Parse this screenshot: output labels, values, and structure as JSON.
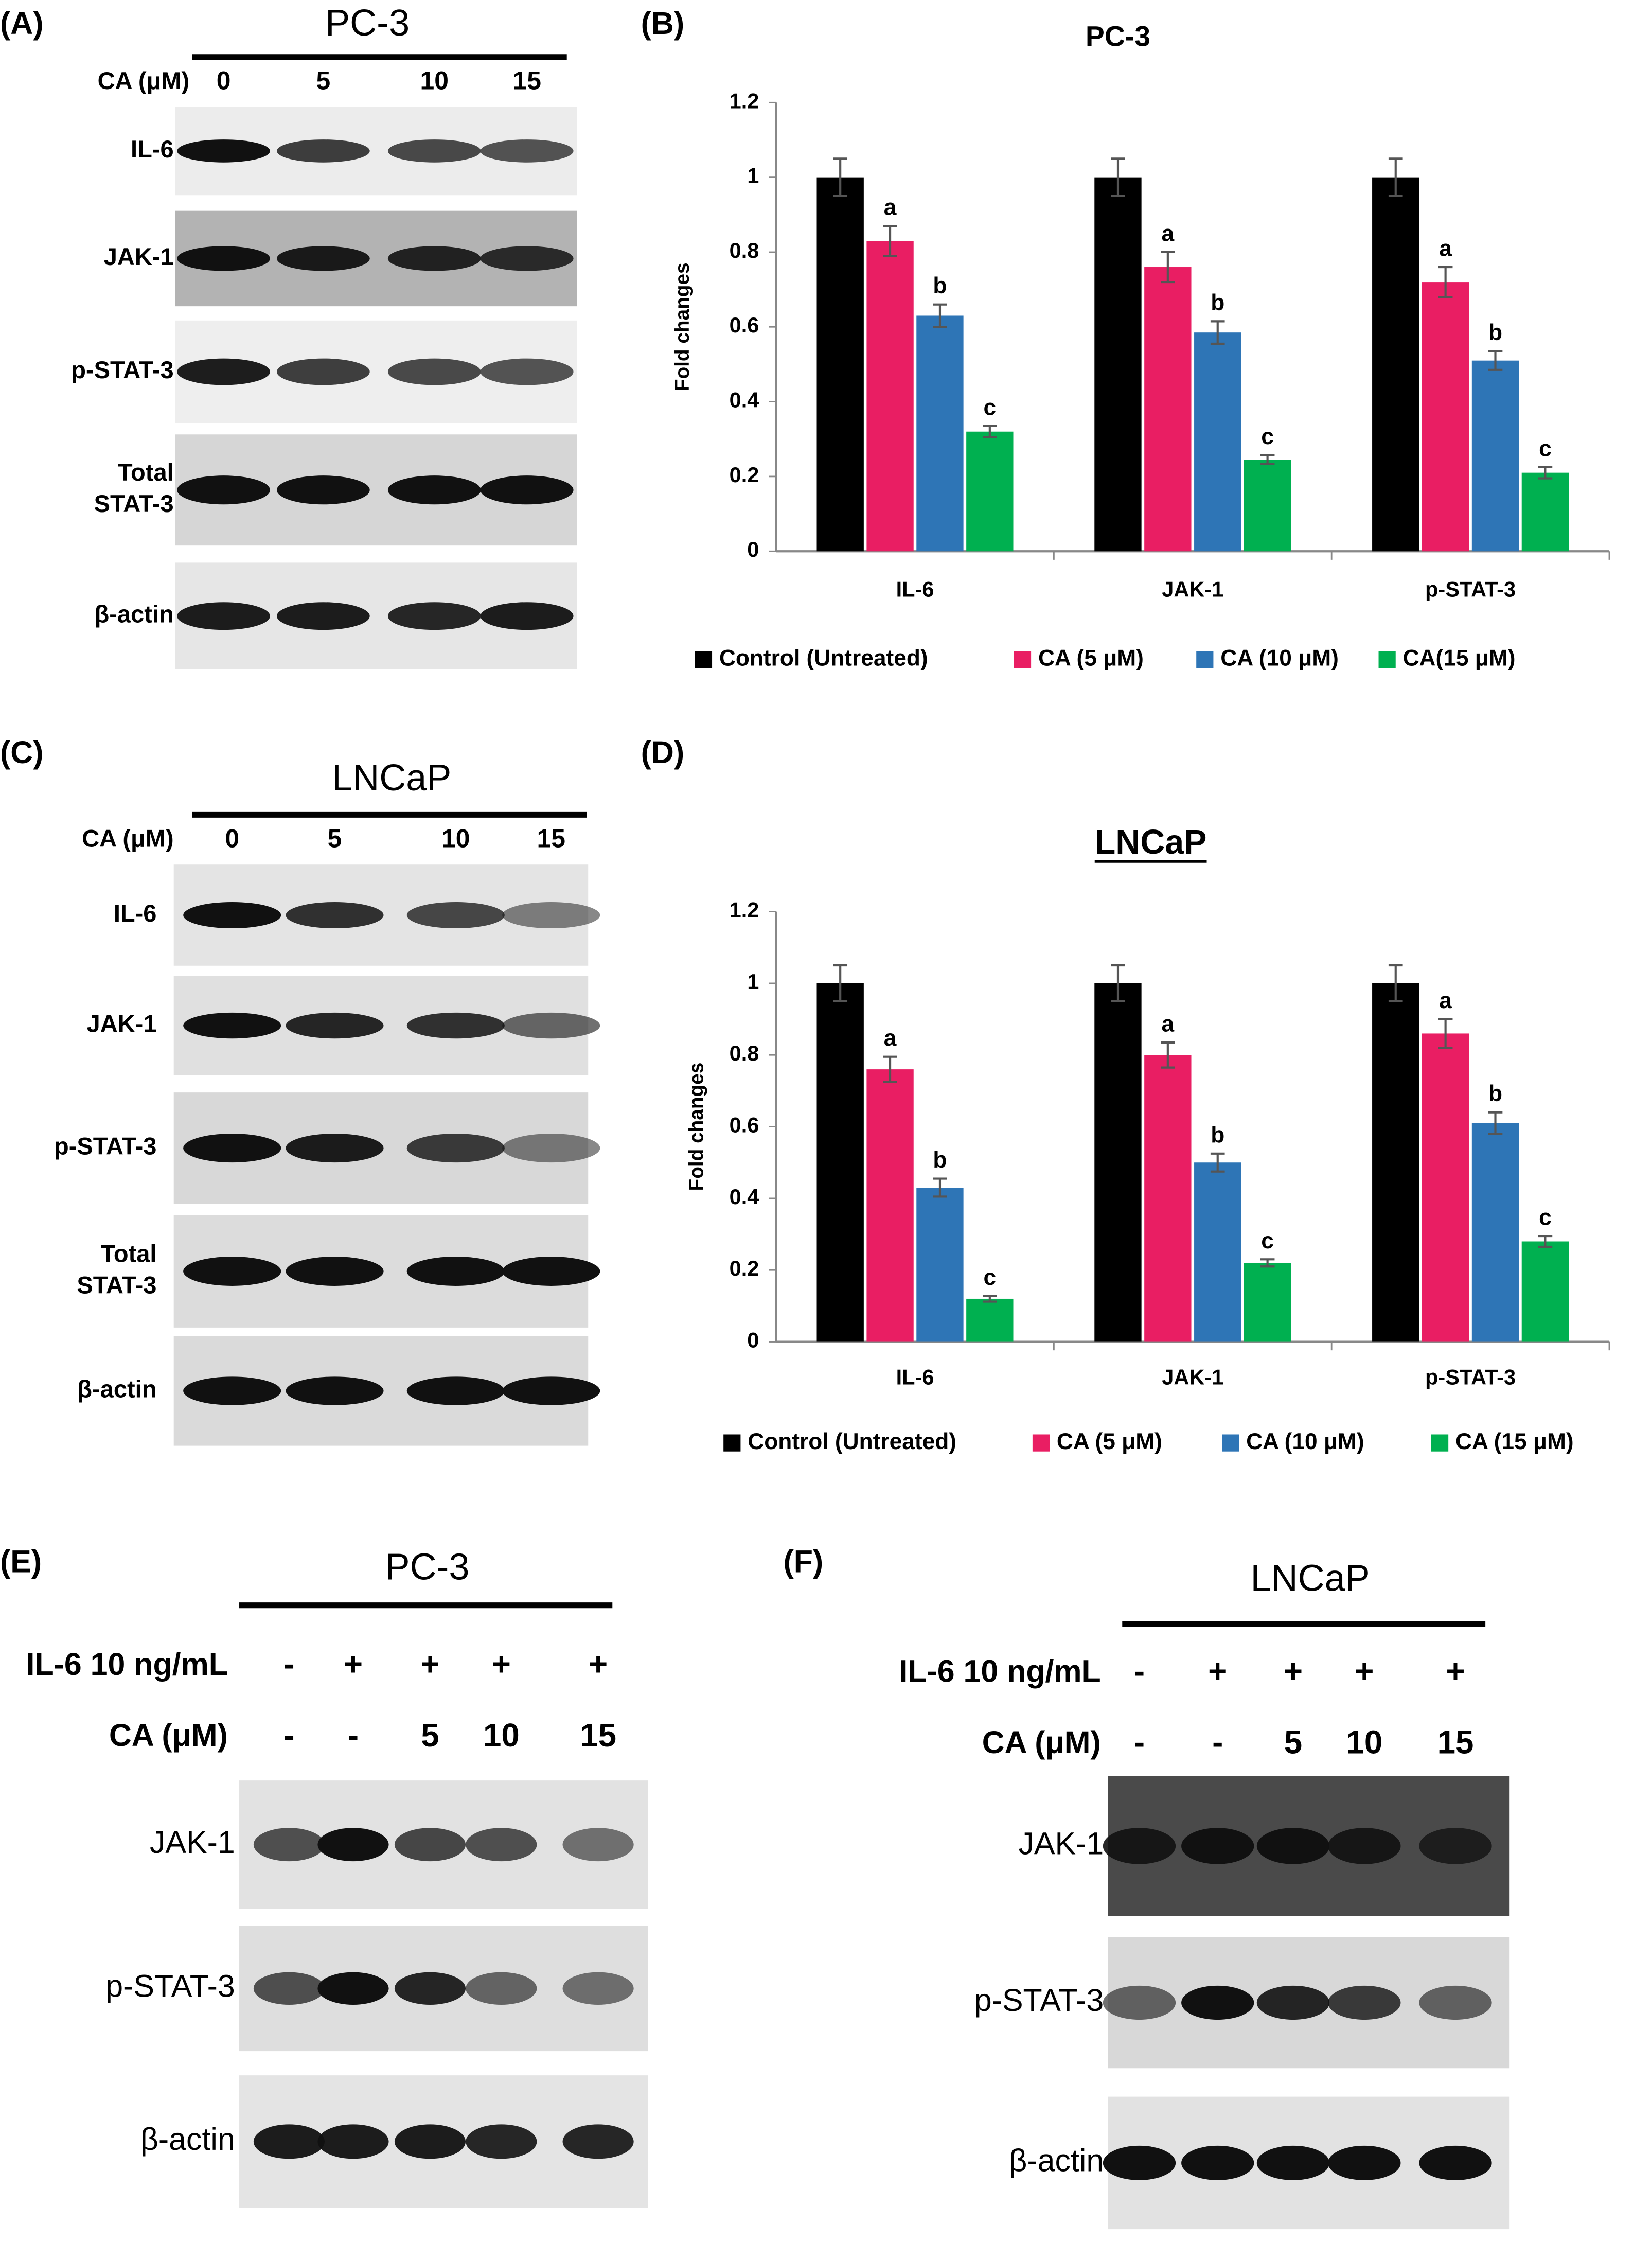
{
  "chart_data": [
    {
      "type": "bar",
      "panel": "(B)",
      "title": "PC-3",
      "title_underline": false,
      "y_label": "Fold changes",
      "categories": [
        "IL-6",
        "JAK-1",
        "p-STAT-3"
      ],
      "ylim": [
        0,
        1.2
      ],
      "yticks": [
        0,
        0.2,
        0.4,
        0.6,
        0.8,
        1,
        1.2
      ],
      "grid": false,
      "series": [
        {
          "name": "Control (Untreated)",
          "color": "#000000",
          "values": [
            1,
            1,
            1
          ],
          "errors": [
            0.05,
            0.05,
            0.05
          ]
        },
        {
          "name": "CA (5 μM)",
          "color": "#e91e63",
          "values": [
            0.83,
            0.76,
            0.72
          ],
          "errors": [
            0.04,
            0.04,
            0.04
          ],
          "annotations": [
            "a",
            "a",
            "a"
          ]
        },
        {
          "name": "CA (10 μM)",
          "color": "#2e75b6",
          "values": [
            0.63,
            0.585,
            0.51
          ],
          "errors": [
            0.03,
            0.03,
            0.025
          ],
          "annotations": [
            "b",
            "b",
            "b"
          ]
        },
        {
          "name": "CA(15 μM)",
          "color": "#00b050",
          "values": [
            0.32,
            0.245,
            0.21
          ],
          "errors": [
            0.015,
            0.012,
            0.015
          ],
          "annotations": [
            "c",
            "c",
            "c"
          ]
        }
      ]
    },
    {
      "type": "bar",
      "panel": "(D)",
      "title": "LNCaP",
      "title_underline": true,
      "y_label": "Fold changes",
      "categories": [
        "IL-6",
        "JAK-1",
        "p-STAT-3"
      ],
      "ylim": [
        0,
        1.2
      ],
      "yticks": [
        0,
        0.2,
        0.4,
        0.6,
        0.8,
        1,
        1.2
      ],
      "grid": false,
      "series": [
        {
          "name": "Control (Untreated)",
          "color": "#000000",
          "values": [
            1,
            1,
            1
          ],
          "errors": [
            0.05,
            0.05,
            0.05
          ]
        },
        {
          "name": "CA (5 μM)",
          "color": "#e91e63",
          "values": [
            0.76,
            0.8,
            0.86
          ],
          "errors": [
            0.035,
            0.035,
            0.04
          ],
          "annotations": [
            "a",
            "a",
            "a"
          ]
        },
        {
          "name": "CA (10 μM)",
          "color": "#2e75b6",
          "values": [
            0.43,
            0.5,
            0.61
          ],
          "errors": [
            0.025,
            0.025,
            0.03
          ],
          "annotations": [
            "b",
            "b",
            "b"
          ]
        },
        {
          "name": "CA (15 μM)",
          "color": "#00b050",
          "values": [
            0.12,
            0.22,
            0.28
          ],
          "errors": [
            0.008,
            0.01,
            0.015
          ],
          "annotations": [
            "c",
            "c",
            "c"
          ]
        }
      ]
    }
  ],
  "blots": [
    {
      "panel": "(A)",
      "cell_line": "PC-3",
      "treatments": [
        {
          "label": "CA (μM)",
          "lanes": [
            "0",
            "5",
            "10",
            "15"
          ]
        }
      ],
      "bands": [
        [
          "IL-6"
        ],
        [
          "JAK-1"
        ],
        [
          "p-STAT-3"
        ],
        [
          "Total",
          "STAT-3"
        ],
        [
          "β-actin"
        ]
      ]
    },
    {
      "panel": "(C)",
      "cell_line": "LNCaP",
      "treatments": [
        {
          "label": "CA (μM)",
          "lanes": [
            "0",
            "5",
            "10",
            "15"
          ]
        }
      ],
      "bands": [
        [
          "IL-6"
        ],
        [
          "JAK-1"
        ],
        [
          "p-STAT-3"
        ],
        [
          "Total",
          "STAT-3"
        ],
        [
          "β-actin"
        ]
      ]
    },
    {
      "panel": "(E)",
      "cell_line": "PC-3",
      "treatments": [
        {
          "label": "IL-6 10 ng/mL",
          "lanes": [
            "-",
            "+",
            "+",
            "+",
            "+"
          ]
        },
        {
          "label": "CA (μM)",
          "lanes": [
            "-",
            "-",
            "5",
            "10",
            "15"
          ]
        }
      ],
      "bands": [
        [
          "JAK-1"
        ],
        [
          "p-STAT-3"
        ],
        [
          "β-actin"
        ]
      ]
    },
    {
      "panel": "(F)",
      "cell_line": "LNCaP",
      "treatments": [
        {
          "label": "IL-6 10 ng/mL",
          "lanes": [
            "-",
            "+",
            "+",
            "+",
            "+"
          ]
        },
        {
          "label": "CA (μM)",
          "lanes": [
            "-",
            "-",
            "5",
            "10",
            "15"
          ]
        }
      ],
      "bands": [
        [
          "JAK-1"
        ],
        [
          "p-STAT-3"
        ],
        [
          "β-actin"
        ]
      ]
    }
  ]
}
